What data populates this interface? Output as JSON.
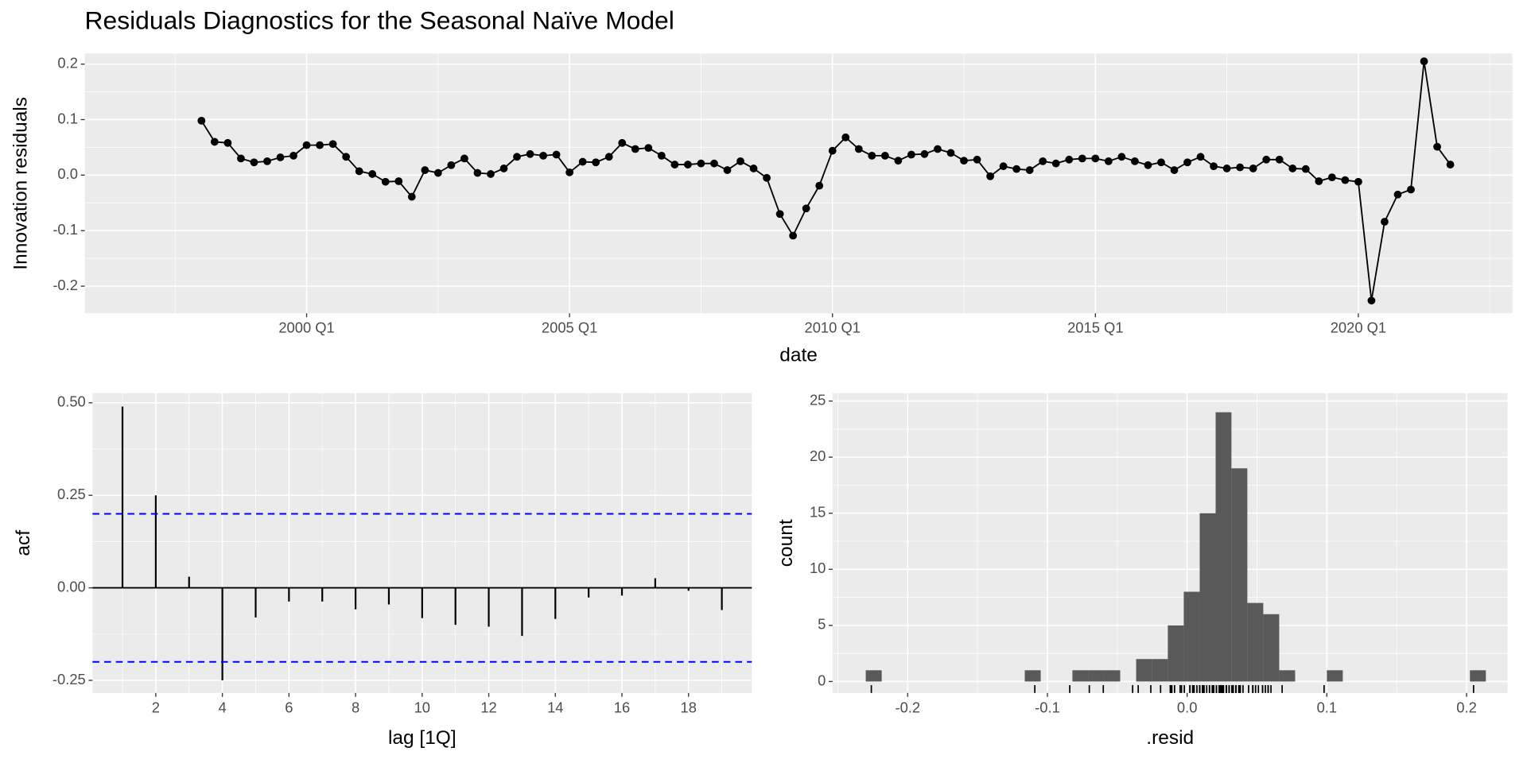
{
  "title": "Residuals Diagnostics for the Seasonal Naïve Model",
  "chart_data": [
    {
      "type": "line",
      "xlabel": "date",
      "ylabel": "Innovation residuals",
      "color": "#000000",
      "x": [
        1998,
        1998.25,
        1998.5,
        1998.75,
        1999,
        1999.25,
        1999.5,
        1999.75,
        2000,
        2000.25,
        2000.5,
        2000.75,
        2001,
        2001.25,
        2001.5,
        2001.75,
        2002,
        2002.25,
        2002.5,
        2002.75,
        2003,
        2003.25,
        2003.5,
        2003.75,
        2004,
        2004.25,
        2004.5,
        2004.75,
        2005,
        2005.25,
        2005.5,
        2005.75,
        2006,
        2006.25,
        2006.5,
        2006.75,
        2007,
        2007.25,
        2007.5,
        2007.75,
        2008,
        2008.25,
        2008.5,
        2008.75,
        2009,
        2009.25,
        2009.5,
        2009.75,
        2010,
        2010.25,
        2010.5,
        2010.75,
        2011,
        2011.25,
        2011.5,
        2011.75,
        2012,
        2012.25,
        2012.5,
        2012.75,
        2013,
        2013.25,
        2013.5,
        2013.75,
        2014,
        2014.25,
        2014.5,
        2014.75,
        2015,
        2015.25,
        2015.5,
        2015.75,
        2016,
        2016.25,
        2016.5,
        2016.75,
        2017,
        2017.25,
        2017.5,
        2017.75,
        2018,
        2018.25,
        2018.5,
        2018.75,
        2019,
        2019.25,
        2019.5,
        2019.75,
        2020,
        2020.25,
        2020.5,
        2020.75,
        2021,
        2021.25,
        2021.5,
        2021.75
      ],
      "values": [
        0.098,
        0.06,
        0.058,
        0.03,
        0.023,
        0.025,
        0.032,
        0.035,
        0.054,
        0.054,
        0.056,
        0.033,
        0.007,
        0.002,
        -0.012,
        -0.011,
        -0.039,
        0.009,
        0.004,
        0.018,
        0.03,
        0.004,
        0.002,
        0.012,
        0.033,
        0.038,
        0.035,
        0.037,
        0.005,
        0.024,
        0.023,
        0.033,
        0.058,
        0.047,
        0.049,
        0.035,
        0.019,
        0.019,
        0.021,
        0.021,
        0.009,
        0.025,
        0.012,
        -0.005,
        -0.07,
        -0.109,
        -0.06,
        -0.019,
        0.044,
        0.068,
        0.047,
        0.035,
        0.035,
        0.026,
        0.037,
        0.038,
        0.047,
        0.04,
        0.026,
        0.028,
        -0.002,
        0.016,
        0.011,
        0.009,
        0.025,
        0.021,
        0.028,
        0.03,
        0.03,
        0.025,
        0.033,
        0.025,
        0.018,
        0.023,
        0.009,
        0.023,
        0.033,
        0.016,
        0.012,
        0.014,
        0.012,
        0.028,
        0.028,
        0.012,
        0.011,
        -0.011,
        -0.004,
        -0.009,
        -0.012,
        -0.226,
        -0.084,
        -0.035,
        -0.026,
        0.205,
        0.051,
        0.019
      ],
      "xlim": [
        1995.78,
        2022.93
      ],
      "ylim": [
        -0.249,
        0.219
      ],
      "xticks": [
        {
          "value": 2000,
          "label": "2000 Q1"
        },
        {
          "value": 2005,
          "label": "2005 Q1"
        },
        {
          "value": 2010,
          "label": "2010 Q1"
        },
        {
          "value": 2015,
          "label": "2015 Q1"
        },
        {
          "value": 2020,
          "label": "2020 Q1"
        }
      ],
      "yticks": [
        -0.2,
        -0.1,
        {
          "value": 0,
          "label": "0.0"
        },
        0.1,
        0.2
      ],
      "grid": true
    },
    {
      "type": "acf",
      "xlabel": "lag [1Q]",
      "ylabel": "acf",
      "color": "#000000",
      "ci_color": "#0000ff",
      "x": [
        1,
        2,
        3,
        4,
        5,
        6,
        7,
        8,
        9,
        10,
        11,
        12,
        13,
        14,
        15,
        16,
        17,
        18,
        19
      ],
      "values": [
        0.49,
        0.25,
        0.03,
        -0.25,
        -0.08,
        -0.037,
        -0.037,
        -0.058,
        -0.045,
        -0.082,
        -0.1,
        -0.105,
        -0.13,
        -0.084,
        -0.026,
        -0.021,
        0.026,
        -0.008,
        -0.06
      ],
      "ci": [
        -0.2,
        0.2
      ],
      "xlim": [
        0.1,
        19.9
      ],
      "ylim": [
        -0.284,
        0.526
      ],
      "xticks": [
        2,
        4,
        6,
        8,
        10,
        12,
        14,
        16,
        18
      ],
      "yticks": [
        -0.25,
        {
          "value": 0,
          "label": "0.00"
        },
        0.25,
        {
          "value": 0.5,
          "label": "0.50"
        }
      ],
      "grid": true
    },
    {
      "type": "histogram",
      "xlabel": ".resid",
      "ylabel": "count",
      "color": "#595959",
      "bins": [
        -0.23,
        -0.2186,
        -0.2072,
        -0.1959,
        -0.1845,
        -0.1731,
        -0.1617,
        -0.1503,
        -0.139,
        -0.1276,
        -0.1162,
        -0.1048,
        -0.0934,
        -0.0821,
        -0.0707,
        -0.0593,
        -0.0479,
        -0.0365,
        -0.0252,
        -0.0138,
        -0.0024,
        0.009,
        0.0204,
        0.0317,
        0.0431,
        0.0545,
        0.0659,
        0.0773,
        0.0886,
        0.1,
        0.1114,
        0.1228,
        0.1342,
        0.1455,
        0.1569,
        0.1683,
        0.1797,
        0.1911,
        0.2024,
        0.2138
      ],
      "values": [
        1,
        0,
        0,
        0,
        0,
        0,
        0,
        0,
        0,
        0,
        1,
        0,
        0,
        1,
        1,
        1,
        0,
        2,
        2,
        5,
        8,
        15,
        24,
        19,
        7,
        6,
        1,
        0,
        0,
        1,
        0,
        0,
        0,
        0,
        0,
        0,
        0,
        0,
        1
      ],
      "xlim": [
        -0.2537,
        0.2293
      ],
      "ylim": [
        -1.02,
        25.7
      ],
      "xticks": [
        -0.2,
        -0.1,
        {
          "value": 0,
          "label": "0.0"
        },
        0.1,
        0.2
      ],
      "yticks": [
        0,
        5,
        10,
        15,
        20,
        25
      ],
      "grid": true
    }
  ]
}
